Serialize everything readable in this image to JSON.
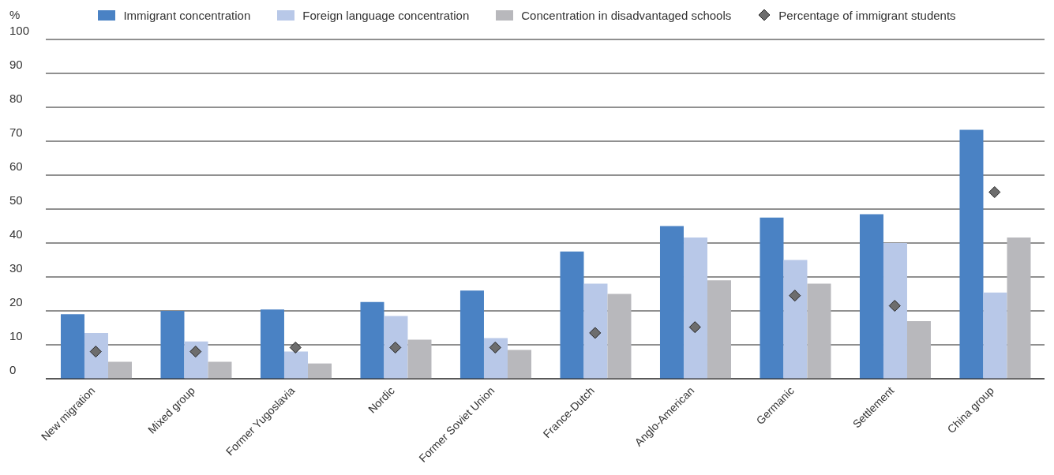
{
  "chart_data": {
    "type": "bar",
    "ylabel": "%",
    "categories": [
      "New migration",
      "Mixed group",
      "Former Yugoslavia",
      "Nordic",
      "Former Soviet Union",
      "France-Dutch",
      "Anglo-American",
      "Germanic",
      "Settlement",
      "China group"
    ],
    "series": [
      {
        "name": "Immigrant concentration",
        "color": "#4a82c4",
        "values": [
          19,
          20,
          20.4,
          22.6,
          26,
          37.5,
          45,
          47.5,
          48.5,
          73.4
        ]
      },
      {
        "name": "Foreign language concentration",
        "color": "#b8c8e8",
        "values": [
          13.5,
          11,
          8,
          18.5,
          12,
          28,
          41.6,
          35,
          40,
          25.4
        ]
      },
      {
        "name": "Concentration in disadvantaged schools",
        "color": "#b8b8bc",
        "values": [
          5,
          5,
          4.5,
          11.5,
          8.5,
          25,
          29,
          28,
          17,
          41.6
        ]
      },
      {
        "name": "Percentage of immigrant students",
        "type": "scatter",
        "color": "#6d6d6d",
        "values": [
          8,
          8,
          9.2,
          9.2,
          9.2,
          13.5,
          15.2,
          24.5,
          21.5,
          55
        ]
      }
    ],
    "ylim": [
      0,
      100
    ],
    "yticks": [
      0,
      10,
      20,
      30,
      40,
      50,
      60,
      70,
      80,
      90,
      100
    ],
    "grid": "y",
    "legend": "top",
    "marker": "diamond"
  }
}
